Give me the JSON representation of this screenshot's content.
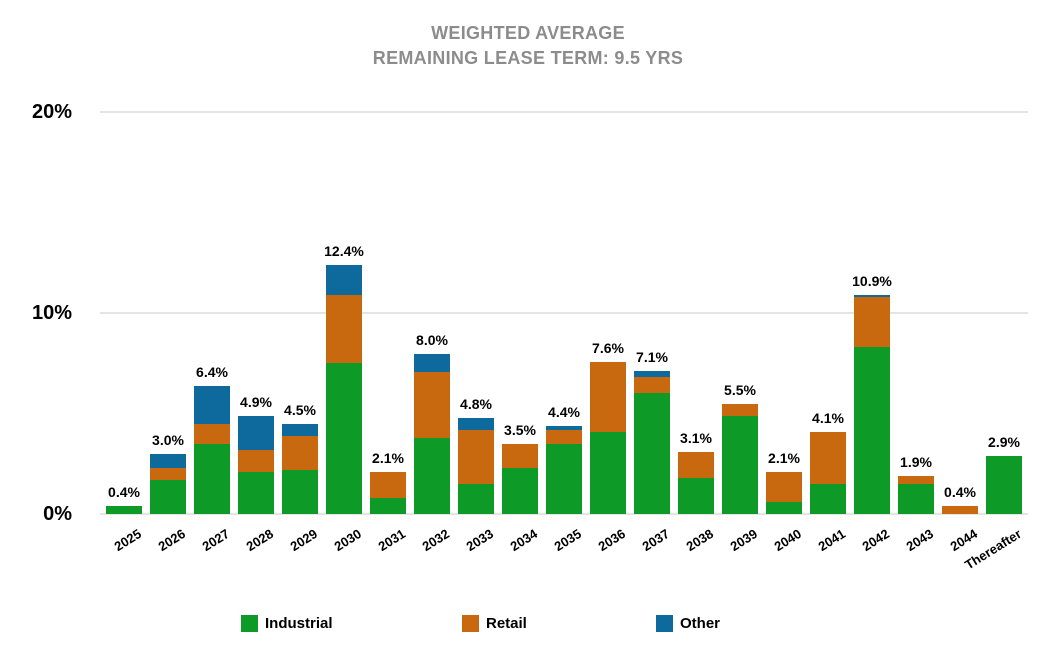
{
  "title": {
    "line1": "WEIGHTED AVERAGE",
    "line2": "REMAINING LEASE TERM: 9.5 YRS"
  },
  "colors": {
    "industrial": "#0d9a26",
    "retail": "#c8680f",
    "other": "#0e699c",
    "gridline": "#e4e4e4",
    "title_text": "#8c8c8c",
    "label_text": "#000000"
  },
  "legend": {
    "items": [
      {
        "label": "Industrial",
        "color_key": "industrial"
      },
      {
        "label": "Retail",
        "color_key": "retail"
      },
      {
        "label": "Other",
        "color_key": "other"
      }
    ]
  },
  "chart_data": {
    "type": "bar",
    "stacked": true,
    "title": "WEIGHTED AVERAGE REMAINING LEASE TERM: 9.5 YRS",
    "categories": [
      "2025",
      "2026",
      "2027",
      "2028",
      "2029",
      "2030",
      "2031",
      "2032",
      "2033",
      "2034",
      "2035",
      "2036",
      "2037",
      "2038",
      "2039",
      "2040",
      "2041",
      "2042",
      "2043",
      "2044",
      "Thereafter"
    ],
    "series": [
      {
        "name": "Industrial",
        "color_key": "industrial",
        "values": [
          0.4,
          1.7,
          3.5,
          2.1,
          2.2,
          7.5,
          0.8,
          3.8,
          1.5,
          2.3,
          3.5,
          4.1,
          6.0,
          1.8,
          4.9,
          0.6,
          1.5,
          8.3,
          1.5,
          0.0,
          2.9
        ]
      },
      {
        "name": "Retail",
        "color_key": "retail",
        "values": [
          0.0,
          0.6,
          1.0,
          1.1,
          1.7,
          3.4,
          1.3,
          3.3,
          2.7,
          1.2,
          0.7,
          3.5,
          0.8,
          1.3,
          0.6,
          1.5,
          2.6,
          2.5,
          0.4,
          0.4,
          0.0
        ]
      },
      {
        "name": "Other",
        "color_key": "other",
        "values": [
          0.0,
          0.7,
          1.9,
          1.7,
          0.6,
          1.5,
          0.0,
          0.9,
          0.6,
          0.0,
          0.2,
          0.0,
          0.3,
          0.0,
          0.0,
          0.0,
          0.0,
          0.1,
          0.0,
          0.0,
          0.0
        ]
      }
    ],
    "total_labels": [
      "0.4%",
      "3.0%",
      "6.4%",
      "4.9%",
      "4.5%",
      "12.4%",
      "2.1%",
      "8.0%",
      "4.8%",
      "3.5%",
      "4.4%",
      "7.6%",
      "7.1%",
      "3.1%",
      "5.5%",
      "2.1%",
      "4.1%",
      "10.9%",
      "1.9%",
      "0.4%",
      "2.9%"
    ],
    "y_ticks": [
      {
        "value": 0,
        "label": "0%"
      },
      {
        "value": 10,
        "label": "10%"
      },
      {
        "value": 20,
        "label": "20%"
      }
    ],
    "ylim": [
      0,
      20
    ],
    "grid": true,
    "legend_position": "bottom"
  }
}
